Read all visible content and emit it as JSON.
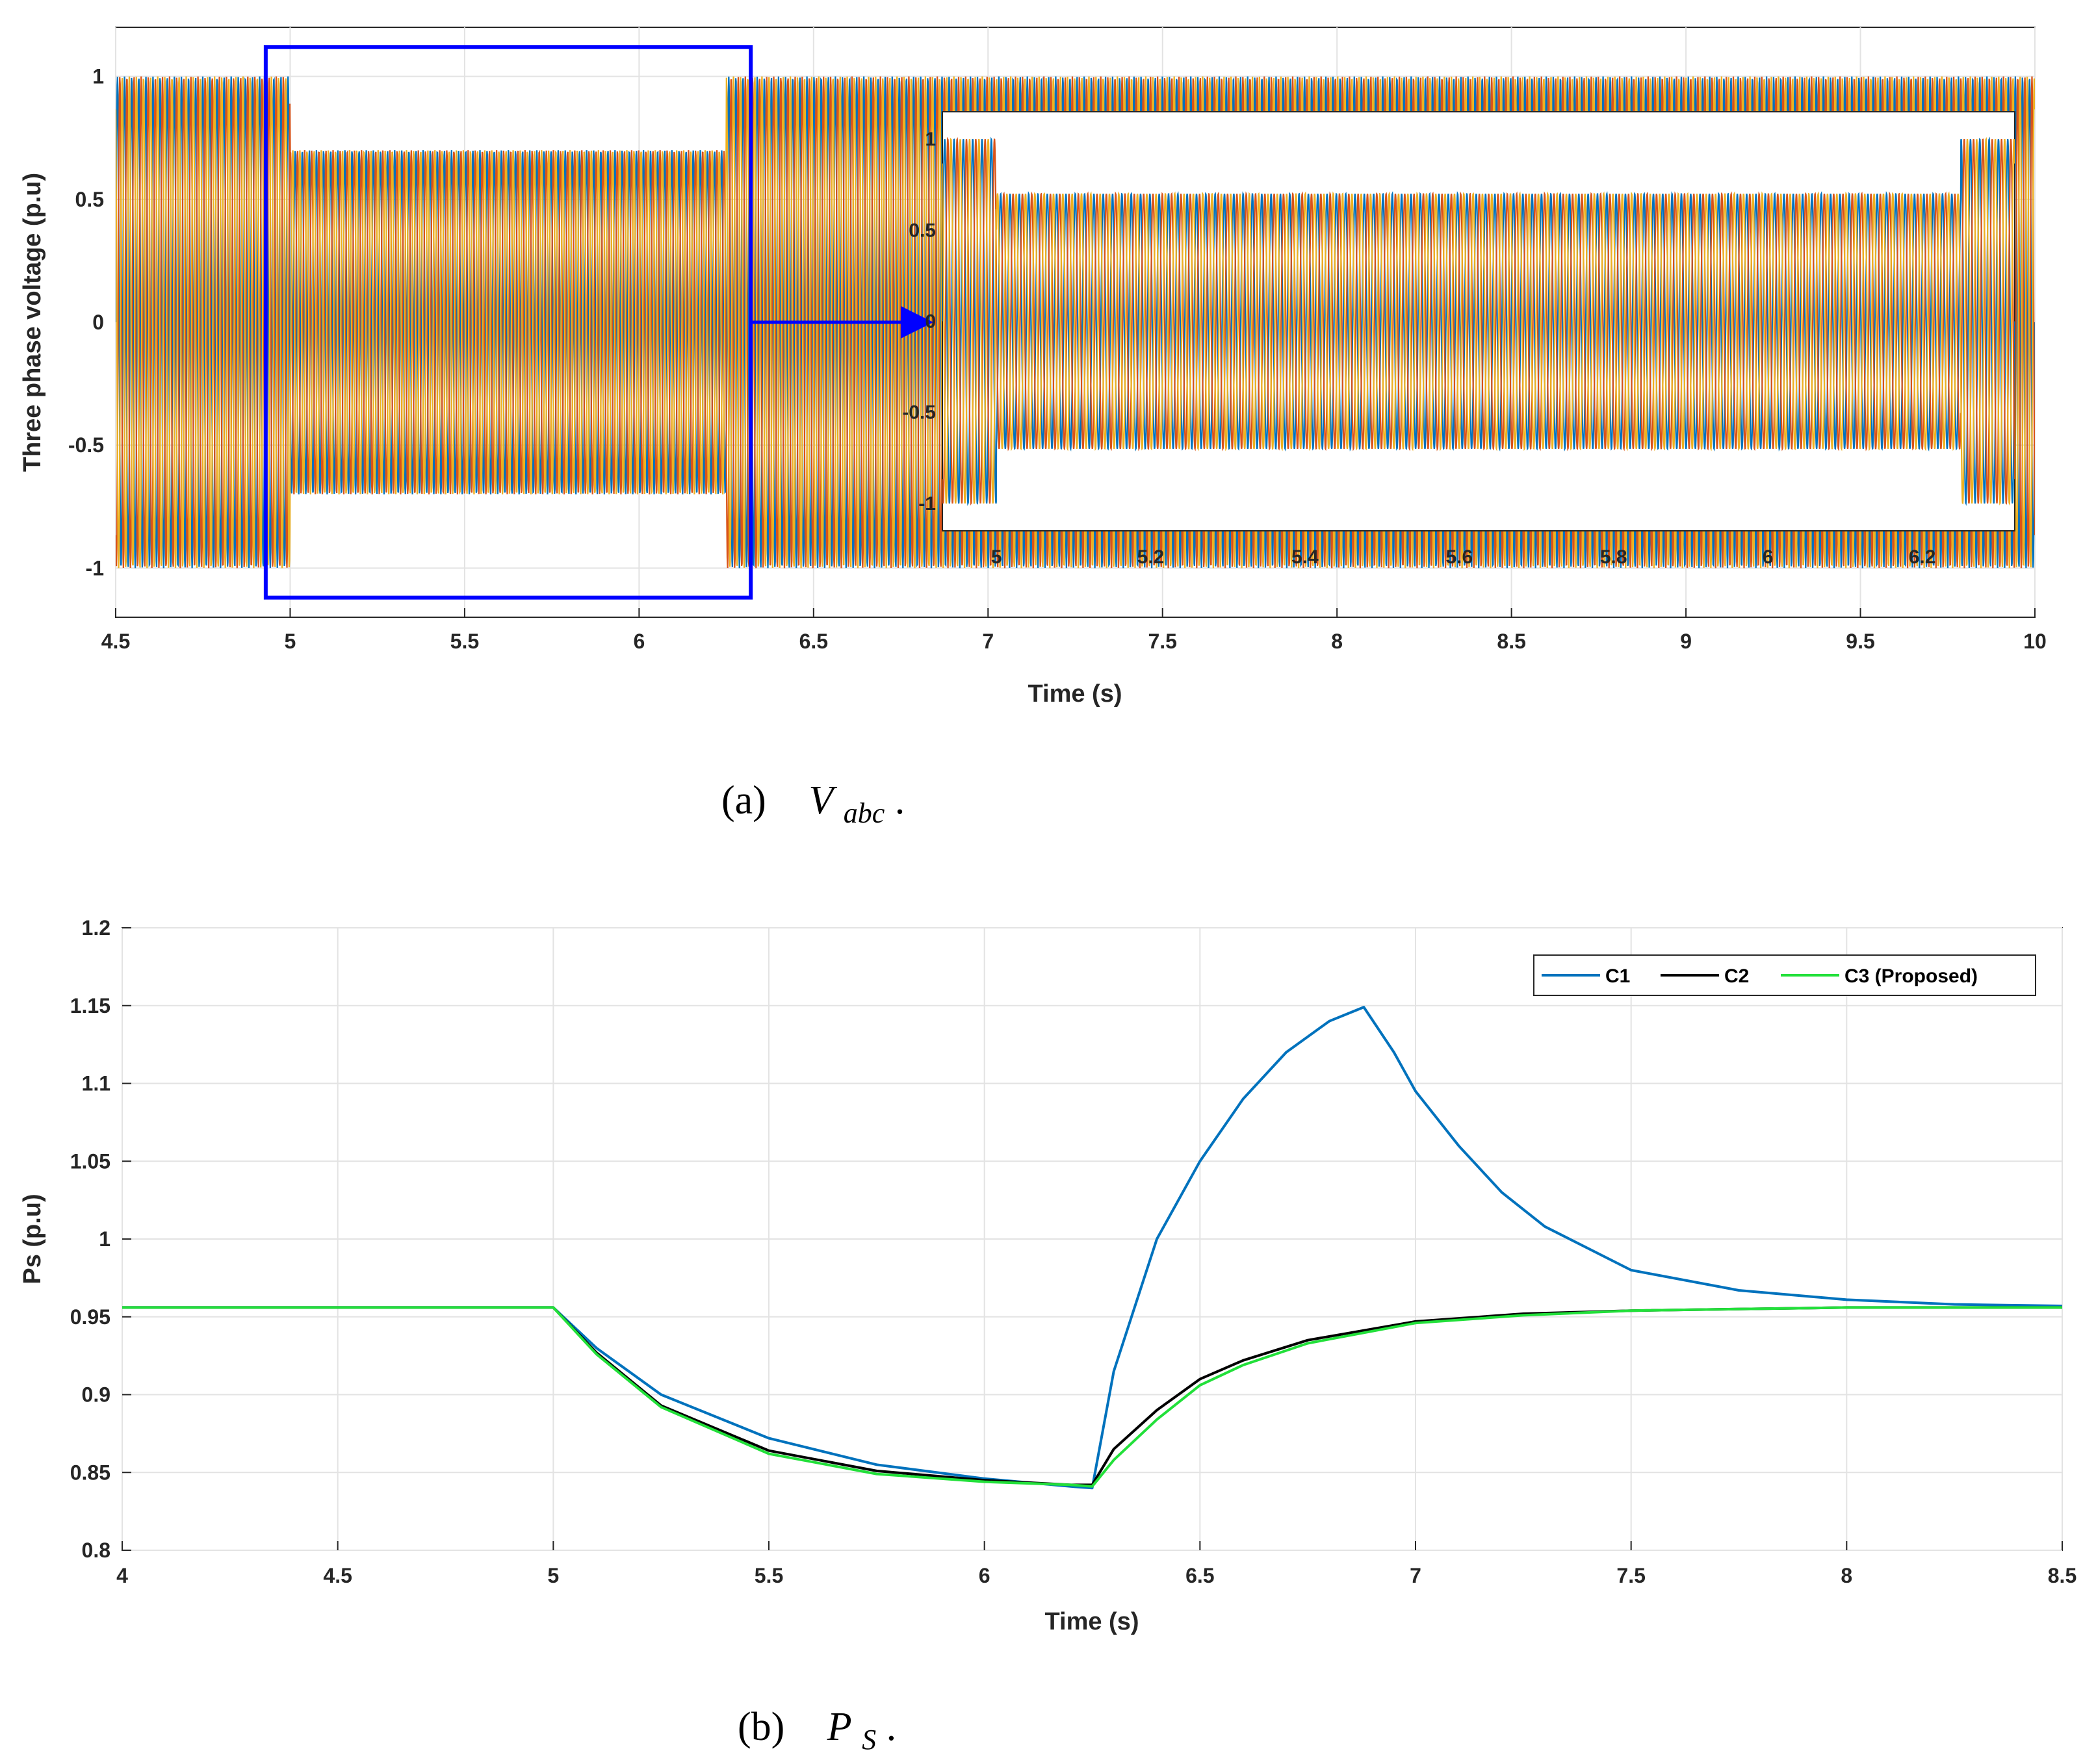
{
  "chart_data": [
    {
      "type": "line",
      "caption": {
        "label": "(a)",
        "symbol": "V",
        "subscript": "abc",
        "suffix": "."
      },
      "xlabel": "Time (s)",
      "ylabel": "Three phase voltage (p.u)",
      "xlim": [
        4.5,
        10
      ],
      "ylim": [
        -1.2,
        1.2
      ],
      "xticks": [
        "4.5",
        "5",
        "5.5",
        "6",
        "6.5",
        "7",
        "7.5",
        "8",
        "8.5",
        "9",
        "9.5",
        "10"
      ],
      "yticks": [
        "-1",
        "-0.5",
        "0",
        "0.5",
        "1"
      ],
      "grid": true,
      "colors": {
        "phase_a": "#0072bd",
        "phase_b": "#d95319",
        "phase_c": "#edb120",
        "highlight": "#0000ff"
      },
      "envelope": {
        "x": [
          4.5,
          5.0,
          5.0,
          6.25,
          6.25,
          10.0
        ],
        "amplitude": [
          1.0,
          1.0,
          0.7,
          0.7,
          1.0,
          1.0
        ]
      },
      "highlight_box": {
        "x": [
          4.93,
          6.32
        ],
        "y": [
          -1.12,
          1.12
        ]
      },
      "inset": {
        "xlim": [
          4.93,
          6.32
        ],
        "ylim": [
          -1.15,
          1.15
        ],
        "xticks": [
          "5",
          "5.2",
          "5.4",
          "5.6",
          "5.8",
          "6",
          "6.2"
        ],
        "yticks": [
          "-1",
          "-0.5",
          "0",
          "0.5",
          "1"
        ]
      }
    },
    {
      "type": "line",
      "caption": {
        "label": "(b)",
        "symbol": "P",
        "subscript": "S",
        "suffix": "."
      },
      "xlabel": "Time (s)",
      "ylabel": "Ps (p.u)",
      "xlim": [
        4,
        8.5
      ],
      "ylim": [
        0.8,
        1.2
      ],
      "xticks": [
        "4",
        "4.5",
        "5",
        "5.5",
        "6",
        "6.5",
        "7",
        "7.5",
        "8",
        "8.5"
      ],
      "yticks": [
        "0.8",
        "0.85",
        "0.9",
        "0.95",
        "1",
        "1.05",
        "1.1",
        "1.15",
        "1.2"
      ],
      "grid": true,
      "legend_position": "top-right",
      "series": [
        {
          "name": "C1",
          "color": "#0072bd",
          "x": [
            4,
            5,
            5.1,
            5.25,
            5.5,
            5.75,
            6,
            6.2,
            6.25,
            6.3,
            6.4,
            6.5,
            6.6,
            6.7,
            6.8,
            6.88,
            6.95,
            7.0,
            7.1,
            7.2,
            7.3,
            7.5,
            7.75,
            8,
            8.25,
            8.5
          ],
          "y": [
            0.956,
            0.956,
            0.93,
            0.9,
            0.872,
            0.855,
            0.846,
            0.841,
            0.84,
            0.915,
            1.0,
            1.05,
            1.09,
            1.12,
            1.14,
            1.149,
            1.12,
            1.095,
            1.06,
            1.03,
            1.008,
            0.98,
            0.967,
            0.961,
            0.958,
            0.957
          ]
        },
        {
          "name": "C2",
          "color": "#000000",
          "x": [
            4,
            5,
            5.1,
            5.25,
            5.5,
            5.75,
            6,
            6.2,
            6.25,
            6.3,
            6.4,
            6.5,
            6.6,
            6.75,
            7.0,
            7.25,
            7.5,
            8,
            8.5
          ],
          "y": [
            0.956,
            0.956,
            0.927,
            0.893,
            0.864,
            0.851,
            0.845,
            0.842,
            0.842,
            0.865,
            0.89,
            0.91,
            0.922,
            0.935,
            0.947,
            0.952,
            0.954,
            0.956,
            0.956
          ]
        },
        {
          "name": "C3 (Proposed)",
          "color": "#22e03a",
          "x": [
            4,
            5,
            5.1,
            5.25,
            5.5,
            5.75,
            6,
            6.2,
            6.25,
            6.3,
            6.4,
            6.5,
            6.6,
            6.75,
            7.0,
            7.25,
            7.5,
            8,
            8.5
          ],
          "y": [
            0.956,
            0.956,
            0.926,
            0.892,
            0.862,
            0.849,
            0.844,
            0.842,
            0.841,
            0.858,
            0.884,
            0.906,
            0.919,
            0.933,
            0.946,
            0.951,
            0.954,
            0.956,
            0.956
          ]
        }
      ]
    }
  ]
}
